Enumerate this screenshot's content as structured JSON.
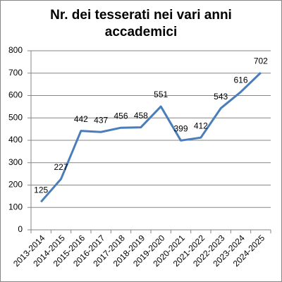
{
  "chart_data": {
    "type": "line",
    "title": "Nr. dei tesserati nei vari anni accademici",
    "categories": [
      "2013-2014",
      "2014-2015",
      "2015-2016",
      "2016-2017",
      "2017-2018",
      "2018-2019",
      "2019-2020",
      "2020-2021",
      "2021-2022",
      "2022-2023",
      "2023-2024",
      "2024-2025"
    ],
    "series": [
      {
        "name": "Nr. dei tesserati",
        "color": "#4a7ebb",
        "values": [
          125,
          227,
          442,
          437,
          456,
          458,
          551,
          399,
          412,
          543,
          616,
          702
        ]
      }
    ],
    "ylim": [
      0,
      800
    ],
    "yticks": [
      0,
      100,
      200,
      300,
      400,
      500,
      600,
      700,
      800
    ],
    "grid": true
  }
}
